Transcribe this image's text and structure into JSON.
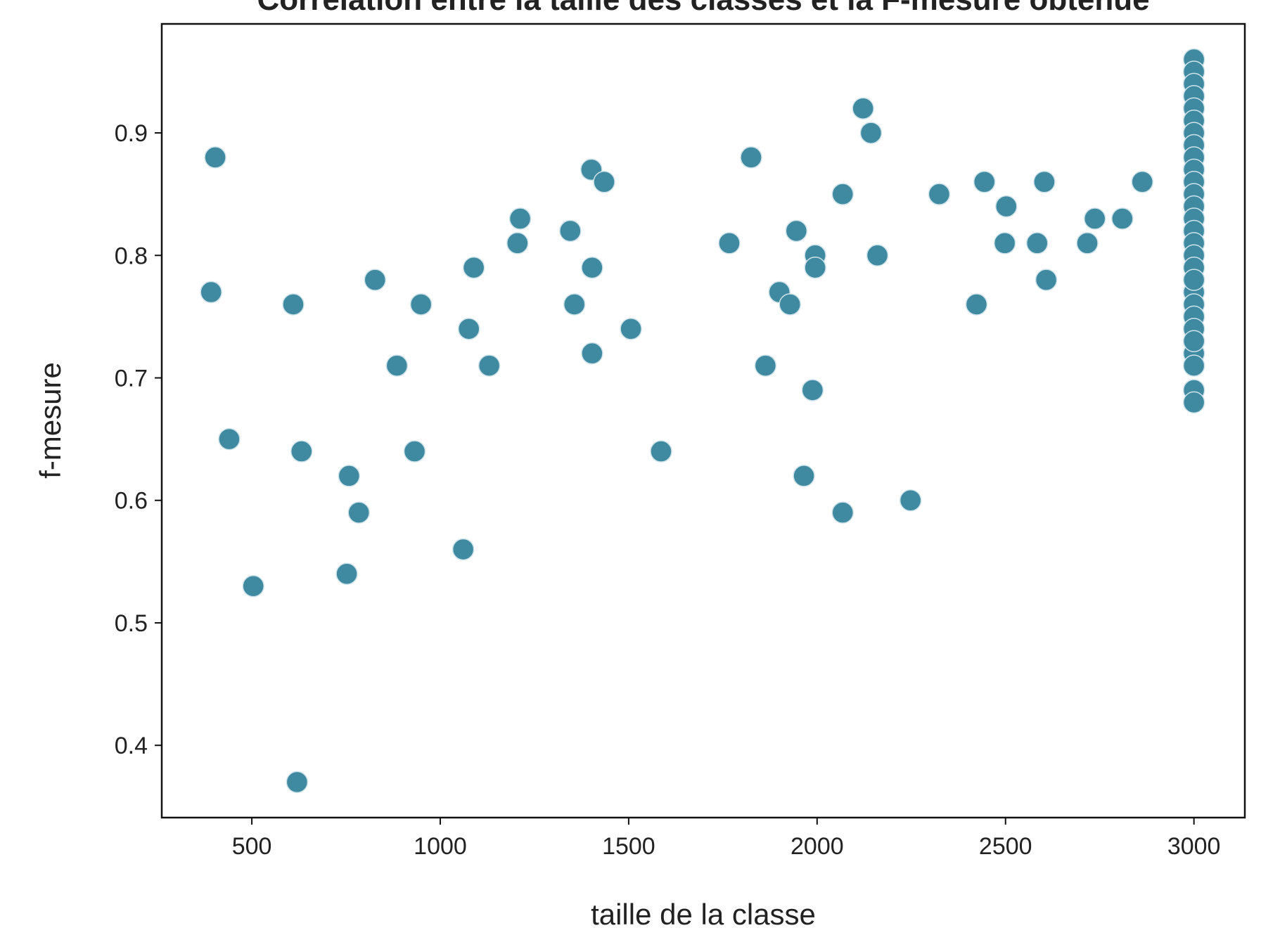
{
  "chart_data": {
    "type": "scatter",
    "title": "Corrélation entre la taille des classes et la F-mesure obtenue",
    "x_label": "taille de la classe",
    "y_label": "f-mesure",
    "color": "#3f8aa0",
    "xlim": [
      261,
      3135
    ],
    "ylim": [
      0.341,
      0.989
    ],
    "xticks": [
      500,
      1000,
      1500,
      2000,
      2500,
      3000
    ],
    "yticks": [
      0.4,
      0.5,
      0.6,
      0.7,
      0.8,
      0.9
    ],
    "grid": false,
    "x": [
      403,
      392,
      440,
      504,
      610,
      632,
      620,
      758,
      784,
      752,
      827,
      885,
      949,
      932,
      1061,
      1089,
      1076,
      1130,
      1212,
      1205,
      1345,
      1356,
      1401,
      1435,
      1403,
      1403,
      1506,
      1586,
      1767,
      1825,
      1863,
      1900,
      1928,
      1945,
      1995,
      1995,
      1988,
      1965,
      2068,
      2068,
      2122,
      2143,
      2160,
      2248,
      2324,
      2423,
      2444,
      2502,
      2498,
      2584,
      2603,
      2608,
      2717,
      2737,
      2810,
      2863,
      3000,
      3000,
      3000,
      3000,
      3000,
      3000,
      3000,
      3000,
      3000,
      3000,
      3000,
      3000,
      3000,
      3000,
      3000,
      3000,
      3000,
      3000,
      3000,
      3000,
      3000,
      3000,
      3000,
      3000,
      3000,
      3000,
      3000,
      3000
    ],
    "values": [
      0.88,
      0.77,
      0.65,
      0.53,
      0.76,
      0.64,
      0.37,
      0.62,
      0.59,
      0.54,
      0.78,
      0.71,
      0.76,
      0.64,
      0.56,
      0.79,
      0.74,
      0.71,
      0.83,
      0.81,
      0.82,
      0.76,
      0.87,
      0.86,
      0.79,
      0.72,
      0.74,
      0.64,
      0.81,
      0.88,
      0.71,
      0.77,
      0.76,
      0.82,
      0.8,
      0.79,
      0.69,
      0.62,
      0.85,
      0.59,
      0.92,
      0.9,
      0.8,
      0.6,
      0.85,
      0.76,
      0.86,
      0.84,
      0.81,
      0.81,
      0.86,
      0.78,
      0.81,
      0.83,
      0.83,
      0.86,
      0.96,
      0.95,
      0.94,
      0.93,
      0.92,
      0.91,
      0.9,
      0.89,
      0.88,
      0.87,
      0.86,
      0.85,
      0.84,
      0.83,
      0.82,
      0.81,
      0.8,
      0.79,
      0.77,
      0.76,
      0.75,
      0.74,
      0.72,
      0.71,
      0.69,
      0.68,
      0.78,
      0.73
    ]
  }
}
